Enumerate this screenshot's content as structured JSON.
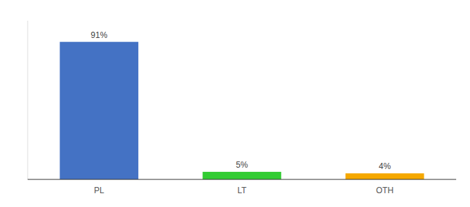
{
  "chart_data": {
    "type": "bar",
    "categories": [
      "PL",
      "LT",
      "OTH"
    ],
    "values": [
      91,
      5,
      4
    ],
    "value_labels": [
      "91%",
      "5%",
      "4%"
    ],
    "colors": [
      "#4472c4",
      "#33cc33",
      "#f5a800"
    ],
    "ylim": [
      0,
      105
    ],
    "data_labels": true,
    "tick_labels": "x",
    "grid": false
  }
}
